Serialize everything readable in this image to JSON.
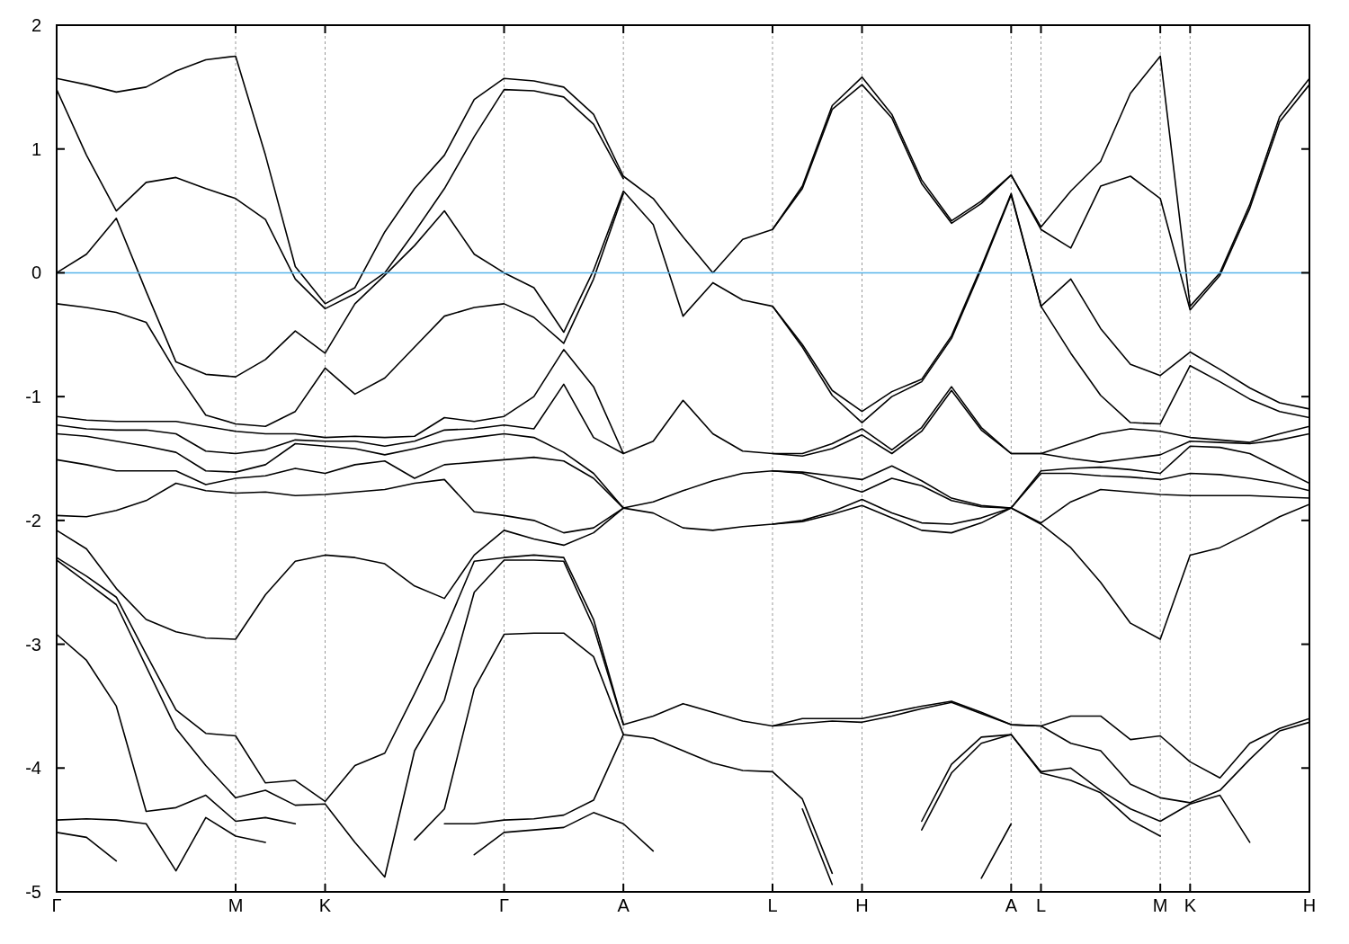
{
  "chart_data": {
    "type": "line",
    "categories": [
      "Γ",
      null,
      null,
      null,
      null,
      null,
      "M",
      null,
      null,
      "K",
      null,
      null,
      null,
      null,
      null,
      "Γ",
      null,
      null,
      null,
      "A",
      null,
      null,
      null,
      null,
      "L",
      null,
      null,
      "H",
      null,
      null,
      null,
      null,
      "A",
      "L",
      null,
      null,
      null,
      "M",
      "K",
      null,
      null,
      null,
      "H"
    ],
    "ylim": [
      -5,
      2
    ],
    "yticks": [
      -5,
      -4,
      -3,
      -2,
      -1,
      0,
      1,
      2
    ],
    "grid": "x",
    "ref_lines": [
      {
        "axis": "y",
        "value": 0,
        "color": "#56b4e9"
      }
    ],
    "series": [
      {
        "color": "#000000",
        "values": [
          1.57,
          1.52,
          1.46,
          1.5,
          1.63,
          1.72,
          1.75,
          0.95,
          0.05,
          -0.25,
          -0.12,
          0.33,
          0.68,
          0.95,
          1.4,
          1.57,
          1.55,
          1.5,
          1.28,
          0.78,
          0.6,
          0.29,
          0.0,
          0.27,
          0.35,
          0.7,
          1.35,
          1.58,
          1.28,
          0.75,
          0.42,
          0.58,
          0.79,
          0.37,
          0.66,
          0.9,
          1.45,
          1.75,
          -0.27,
          0.0,
          0.55,
          1.26,
          1.57
        ]
      },
      {
        "color": "#000000",
        "values": [
          1.48,
          0.95,
          0.5,
          0.73,
          0.77,
          0.68,
          0.6,
          0.43,
          -0.05,
          -0.29,
          -0.17,
          0.0,
          0.33,
          0.68,
          1.1,
          1.48,
          1.47,
          1.42,
          1.2,
          0.76,
          null,
          null,
          null,
          null,
          0.35,
          0.68,
          1.32,
          1.52,
          1.25,
          0.72,
          0.4,
          0.56,
          0.79,
          0.35,
          0.2,
          0.7,
          0.78,
          0.6,
          -0.3,
          -0.02,
          0.52,
          1.22,
          1.52
        ]
      },
      {
        "color": "#000000",
        "values": [
          0,
          0.15,
          0.44,
          -0.15,
          -0.72,
          -0.82,
          -0.84,
          -0.7,
          -0.47,
          -0.65,
          -0.25,
          -0.02,
          0.22,
          0.5,
          0.15,
          0,
          -0.12,
          -0.48,
          0.02,
          0.66,
          0.39,
          -0.35,
          -0.08,
          -0.22,
          -0.27,
          -0.58,
          -0.95,
          -1.12,
          -0.96,
          -0.86,
          -0.51,
          0.05,
          0.64,
          -0.27,
          -0.05,
          -0.45,
          -0.74,
          -0.83,
          -0.64,
          -0.78,
          -0.93,
          -1.05,
          -1.1
        ]
      },
      {
        "color": "#000000",
        "values": [
          -0.25,
          -0.28,
          -0.32,
          -0.4,
          -0.8,
          -1.15,
          -1.22,
          -1.24,
          -1.12,
          -0.77,
          -0.98,
          -0.85,
          -0.6,
          -0.35,
          -0.28,
          -0.25,
          -0.36,
          -0.57,
          -0.05,
          0.64,
          null,
          null,
          null,
          null,
          -0.27,
          -0.6,
          -0.99,
          -1.21,
          -1.0,
          -0.88,
          -0.53,
          0.03,
          0.63,
          -0.27,
          -0.65,
          -0.99,
          -1.21,
          -1.22,
          -0.75,
          -0.88,
          -1.02,
          -1.12,
          -1.17
        ]
      },
      {
        "color": "#000000",
        "values": [
          -1.16,
          -1.19,
          -1.2,
          -1.2,
          -1.2,
          -1.24,
          -1.28,
          -1.3,
          -1.3,
          -1.33,
          -1.32,
          -1.33,
          -1.32,
          -1.17,
          -1.2,
          -1.16,
          -1.0,
          -0.62,
          -0.92,
          -1.46,
          -1.36,
          -1.03,
          -1.3,
          -1.44,
          -1.46,
          -1.46,
          -1.38,
          -1.26,
          -1.43,
          -1.25,
          -0.92,
          -1.25,
          -1.46,
          -1.46,
          -1.38,
          -1.3,
          -1.26,
          -1.28,
          -1.33,
          -1.35,
          -1.37,
          -1.3,
          -1.24
        ]
      },
      {
        "color": "#000000",
        "values": [
          -1.23,
          -1.26,
          -1.27,
          -1.27,
          -1.3,
          -1.44,
          -1.46,
          -1.43,
          -1.35,
          -1.36,
          -1.36,
          -1.4,
          -1.36,
          -1.27,
          -1.26,
          -1.23,
          -1.26,
          -0.9,
          -1.33,
          -1.46,
          null,
          null,
          null,
          null,
          -1.46,
          -1.48,
          -1.42,
          -1.31,
          -1.46,
          -1.28,
          -0.95,
          -1.27,
          -1.46,
          -1.46,
          -1.5,
          -1.53,
          -1.5,
          -1.47,
          -1.36,
          -1.37,
          -1.38,
          -1.35,
          -1.3
        ]
      },
      {
        "color": "#000000",
        "values": [
          -1.3,
          -1.32,
          -1.36,
          -1.4,
          -1.45,
          -1.6,
          -1.61,
          -1.55,
          -1.38,
          -1.4,
          -1.42,
          -1.47,
          -1.42,
          -1.36,
          -1.33,
          -1.3,
          -1.33,
          -1.45,
          -1.62,
          -1.9,
          -1.85,
          -1.76,
          -1.68,
          -1.62,
          -1.6,
          -1.61,
          -1.64,
          -1.67,
          -1.56,
          -1.68,
          -1.82,
          -1.88,
          -1.9,
          -1.6,
          -1.58,
          -1.57,
          -1.59,
          -1.62,
          -1.4,
          -1.41,
          -1.46,
          -1.58,
          -1.7
        ]
      },
      {
        "color": "#000000",
        "values": [
          -1.51,
          -1.55,
          -1.6,
          -1.6,
          -1.6,
          -1.71,
          -1.66,
          -1.64,
          -1.58,
          -1.62,
          -1.55,
          -1.52,
          -1.66,
          -1.55,
          -1.53,
          -1.51,
          -1.49,
          -1.52,
          -1.66,
          -1.9,
          null,
          null,
          null,
          null,
          -1.6,
          -1.62,
          -1.7,
          -1.77,
          -1.66,
          -1.72,
          -1.84,
          -1.89,
          -1.9,
          -1.62,
          -1.62,
          -1.64,
          -1.65,
          -1.67,
          -1.62,
          -1.63,
          -1.66,
          -1.7,
          -1.76
        ]
      },
      {
        "color": "#000000",
        "values": [
          -1.96,
          -1.97,
          -1.92,
          -1.84,
          -1.7,
          -1.76,
          -1.78,
          -1.77,
          -1.8,
          -1.79,
          -1.77,
          -1.75,
          -1.7,
          -1.67,
          -1.93,
          -1.96,
          -2.0,
          -2.1,
          -2.06,
          -1.9,
          -1.94,
          -2.06,
          -2.08,
          -2.05,
          -2.03,
          -2.0,
          -1.93,
          -1.83,
          -1.94,
          -2.02,
          -2.03,
          -1.98,
          -1.9,
          -2.02,
          -1.85,
          -1.75,
          -1.77,
          -1.79,
          -1.8,
          -1.8,
          -1.8,
          -1.81,
          -1.82
        ]
      },
      {
        "color": "#000000",
        "values": [
          -2.08,
          -2.23,
          -2.55,
          -2.8,
          -2.9,
          -2.95,
          -2.96,
          -2.6,
          -2.33,
          -2.28,
          -2.3,
          -2.35,
          -2.53,
          -2.63,
          -2.28,
          -2.08,
          -2.15,
          -2.2,
          -2.1,
          -1.9,
          null,
          null,
          null,
          null,
          -2.03,
          -2.01,
          -1.95,
          -1.88,
          -1.98,
          -2.08,
          -2.1,
          -2.02,
          -1.9,
          -2.03,
          -2.22,
          -2.5,
          -2.83,
          -2.96,
          -2.28,
          -2.22,
          -2.1,
          -1.97,
          -1.87
        ]
      },
      {
        "color": "#000000",
        "values": [
          -2.3,
          -2.45,
          -2.62,
          -3.08,
          -3.53,
          -3.72,
          -3.74,
          -4.12,
          -4.1,
          -4.27,
          -3.98,
          -3.88,
          -3.4,
          -2.9,
          -2.33,
          -2.3,
          -2.28,
          -2.3,
          -2.8,
          -3.65,
          -3.58,
          -3.48,
          -3.55,
          -3.62,
          -3.66,
          -3.6,
          -3.6,
          -3.6,
          -3.55,
          -3.5,
          -3.46,
          -3.55,
          -3.65,
          -3.66,
          -3.58,
          -3.58,
          -3.77,
          -3.74,
          -3.95,
          -4.08,
          -3.8,
          -3.68,
          -3.6
        ]
      },
      {
        "color": "#000000",
        "values": [
          -2.32,
          -2.5,
          -2.68,
          -3.18,
          -3.68,
          -3.98,
          -4.24,
          -4.18,
          -4.3,
          -4.29,
          -4.6,
          -4.88,
          -3.86,
          -3.45,
          -2.58,
          -2.32,
          -2.32,
          -2.33,
          -2.86,
          -3.65,
          null,
          null,
          null,
          null,
          -3.66,
          -3.64,
          -3.62,
          -3.63,
          -3.58,
          -3.52,
          -3.47,
          -3.56,
          -3.65,
          -3.66,
          -3.8,
          -3.86,
          -4.13,
          -4.24,
          -4.28,
          -4.18,
          -3.93,
          -3.7,
          -3.63
        ]
      },
      {
        "color": "#000000",
        "values": [
          -2.92,
          -3.13,
          -3.5,
          -4.35,
          -4.32,
          -4.22,
          -4.43,
          -4.4,
          -4.45,
          null,
          null,
          null,
          -4.58,
          -4.33,
          -3.36,
          -2.92,
          -2.91,
          -2.91,
          -3.1,
          -3.73,
          -3.76,
          -3.86,
          -3.96,
          -4.02,
          -4.03,
          -4.25,
          -4.85,
          null,
          null,
          -4.43,
          -3.97,
          -3.75,
          -3.73,
          -4.03,
          -4.0,
          -4.18,
          -4.33,
          -4.43,
          -4.29,
          -4.22,
          -4.6,
          null,
          null
        ]
      },
      {
        "color": "#000000",
        "values": [
          -4.42,
          -4.41,
          -4.42,
          -4.45,
          -4.83,
          -4.4,
          -4.55,
          -4.6,
          null,
          null,
          null,
          null,
          null,
          -4.45,
          -4.45,
          -4.42,
          -4.41,
          -4.38,
          -4.26,
          -3.73,
          null,
          null,
          null,
          null,
          null,
          -4.33,
          -4.94,
          null,
          null,
          -4.5,
          -4.04,
          -3.8,
          -3.73,
          -4.04,
          -4.1,
          -4.2,
          -4.42,
          -4.55,
          null,
          null,
          null,
          null,
          null
        ]
      },
      {
        "color": "#000000",
        "values": [
          -4.52,
          -4.56,
          -4.75,
          null,
          null,
          null,
          null,
          null,
          null,
          null,
          null,
          null,
          null,
          null,
          -4.7,
          -4.52,
          -4.5,
          -4.48,
          -4.36,
          -4.45,
          -4.67,
          null,
          null,
          null,
          null,
          null,
          null,
          null,
          null,
          null,
          null,
          -4.89,
          -4.45,
          null,
          null,
          null,
          null,
          null,
          null,
          null,
          null,
          null,
          null
        ]
      }
    ]
  }
}
